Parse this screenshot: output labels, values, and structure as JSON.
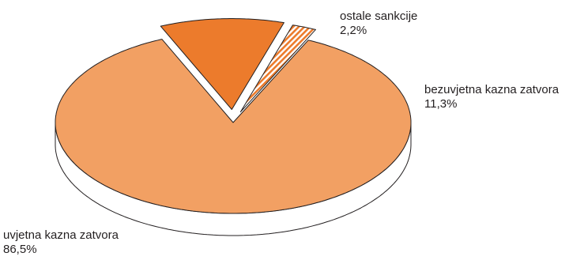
{
  "chart_data": {
    "type": "pie",
    "title": "",
    "slices": [
      {
        "label": "uvjetna kazna zatvora",
        "value": 86.5,
        "value_label": "86,5%",
        "color": "#f2a063",
        "pattern": "solid",
        "exploded": false
      },
      {
        "label": "bezuvjetna kazna zatvora",
        "value": 11.3,
        "value_label": "11,3%",
        "color": "#ec7b2c",
        "pattern": "solid",
        "exploded": true
      },
      {
        "label": "ostale sankcije",
        "value": 2.2,
        "value_label": "2,2%",
        "color": "#ec7b2c",
        "pattern": "striped",
        "exploded": true
      }
    ],
    "style": "3d-tilted",
    "edge_color": "#231f20",
    "side_color": "#ffffff"
  }
}
